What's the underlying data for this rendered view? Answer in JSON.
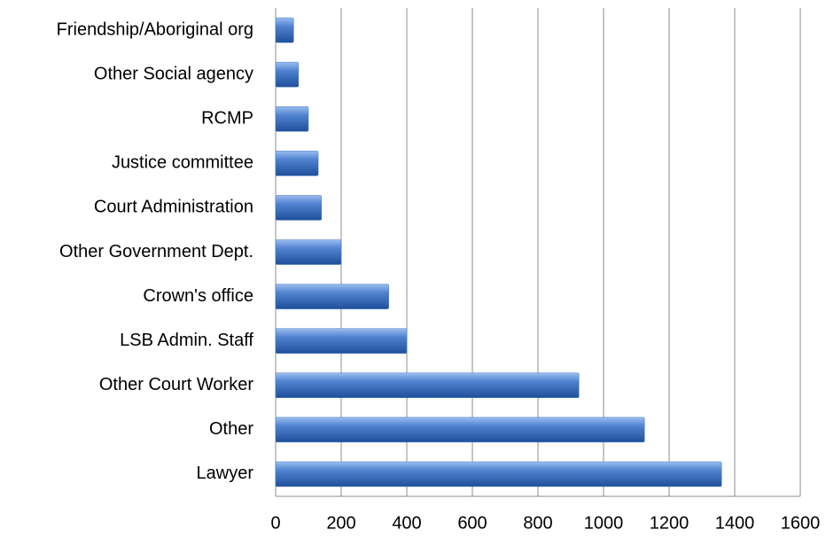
{
  "chart_data": {
    "type": "hbar",
    "categories": [
      "Friendship/Aboriginal org",
      "Other Social agency",
      "RCMP",
      "Justice committee",
      "Court Administration",
      "Other Government Dept.",
      "Crown's office",
      "LSB Admin. Staff",
      "Other Court Worker",
      "Other",
      "Lawyer"
    ],
    "values": [
      55,
      70,
      100,
      130,
      140,
      200,
      345,
      400,
      925,
      1125,
      1360
    ],
    "color": "#4a7cc7",
    "xlim": [
      0,
      1600
    ],
    "xticks": [
      0,
      200,
      400,
      600,
      800,
      1000,
      1200,
      1400,
      1600
    ],
    "grid": true
  }
}
